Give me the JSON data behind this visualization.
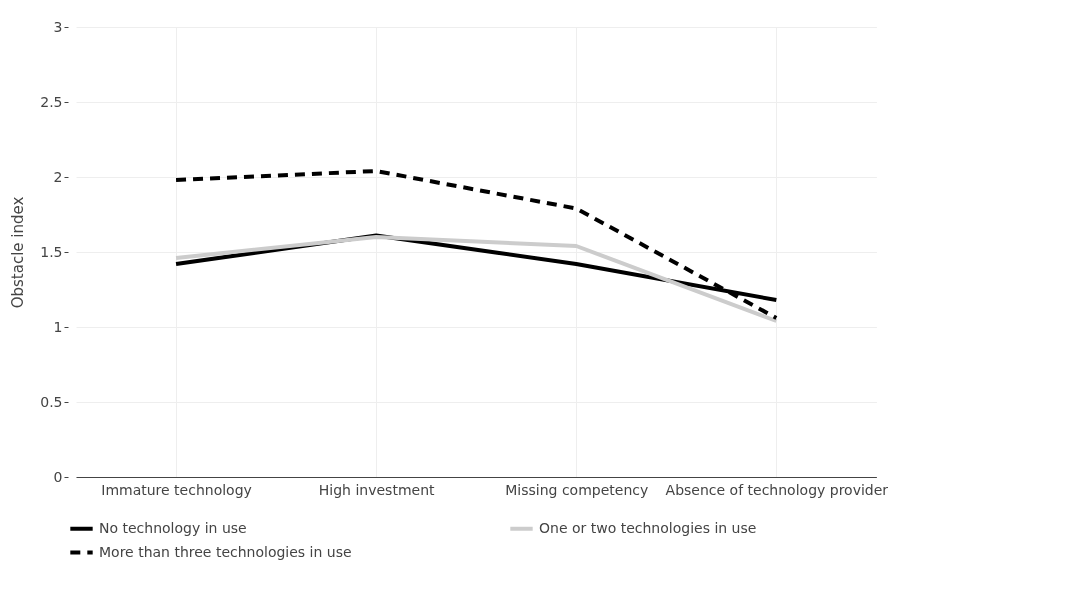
{
  "chart_data": {
    "type": "line",
    "ylabel": "Obstacle index",
    "categories": [
      "Immature technology",
      "High investment",
      "Missing competency",
      "Absence of technology provider"
    ],
    "series": [
      {
        "name": "No technology in use",
        "color": "#000000",
        "line_style": "solid",
        "values": [
          1.42,
          1.61,
          1.42,
          1.18
        ]
      },
      {
        "name": "One or two technologies in use",
        "color": "#cccccc",
        "line_style": "solid",
        "values": [
          1.46,
          1.6,
          1.54,
          1.04
        ]
      },
      {
        "name": "More than three technologies in use",
        "color": "#000000",
        "line_style": "dashed",
        "values": [
          1.98,
          2.04,
          1.79,
          1.06
        ]
      }
    ],
    "ylim": [
      0,
      3
    ],
    "yticks": [
      0,
      0.5,
      1,
      1.5,
      2,
      2.5,
      3
    ],
    "grid": true,
    "legend": "bottom left",
    "marker": "none"
  }
}
